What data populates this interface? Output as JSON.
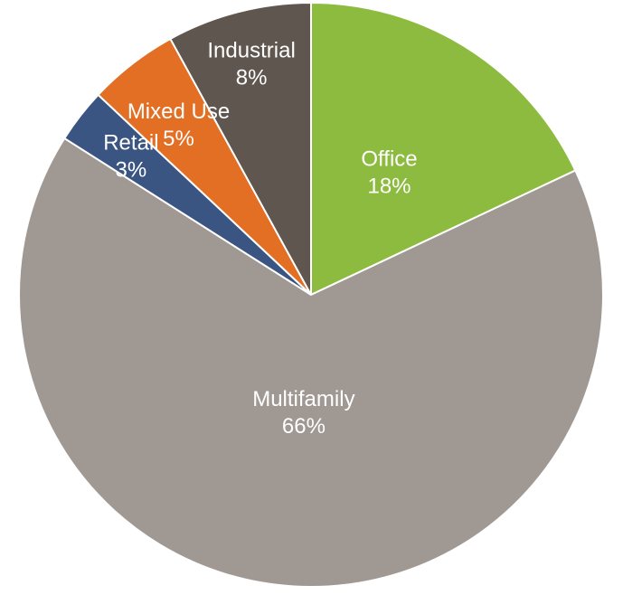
{
  "chart_data": {
    "type": "pie",
    "title": "",
    "start_angle_deg": 0,
    "direction": "clockwise",
    "slices": [
      {
        "label": "Office",
        "value": 18,
        "value_label": "18%",
        "color": "#8DBB3F"
      },
      {
        "label": "Multifamily",
        "value": 66,
        "value_label": "66%",
        "color": "#A09893"
      },
      {
        "label": "Retail",
        "value": 3,
        "value_label": "3%",
        "color": "#3B5583"
      },
      {
        "label": "Mixed Use",
        "value": 5,
        "value_label": "5%",
        "color": "#E36F25"
      },
      {
        "label": "Industrial",
        "value": 8,
        "value_label": "8%",
        "color": "#605650"
      }
    ]
  }
}
